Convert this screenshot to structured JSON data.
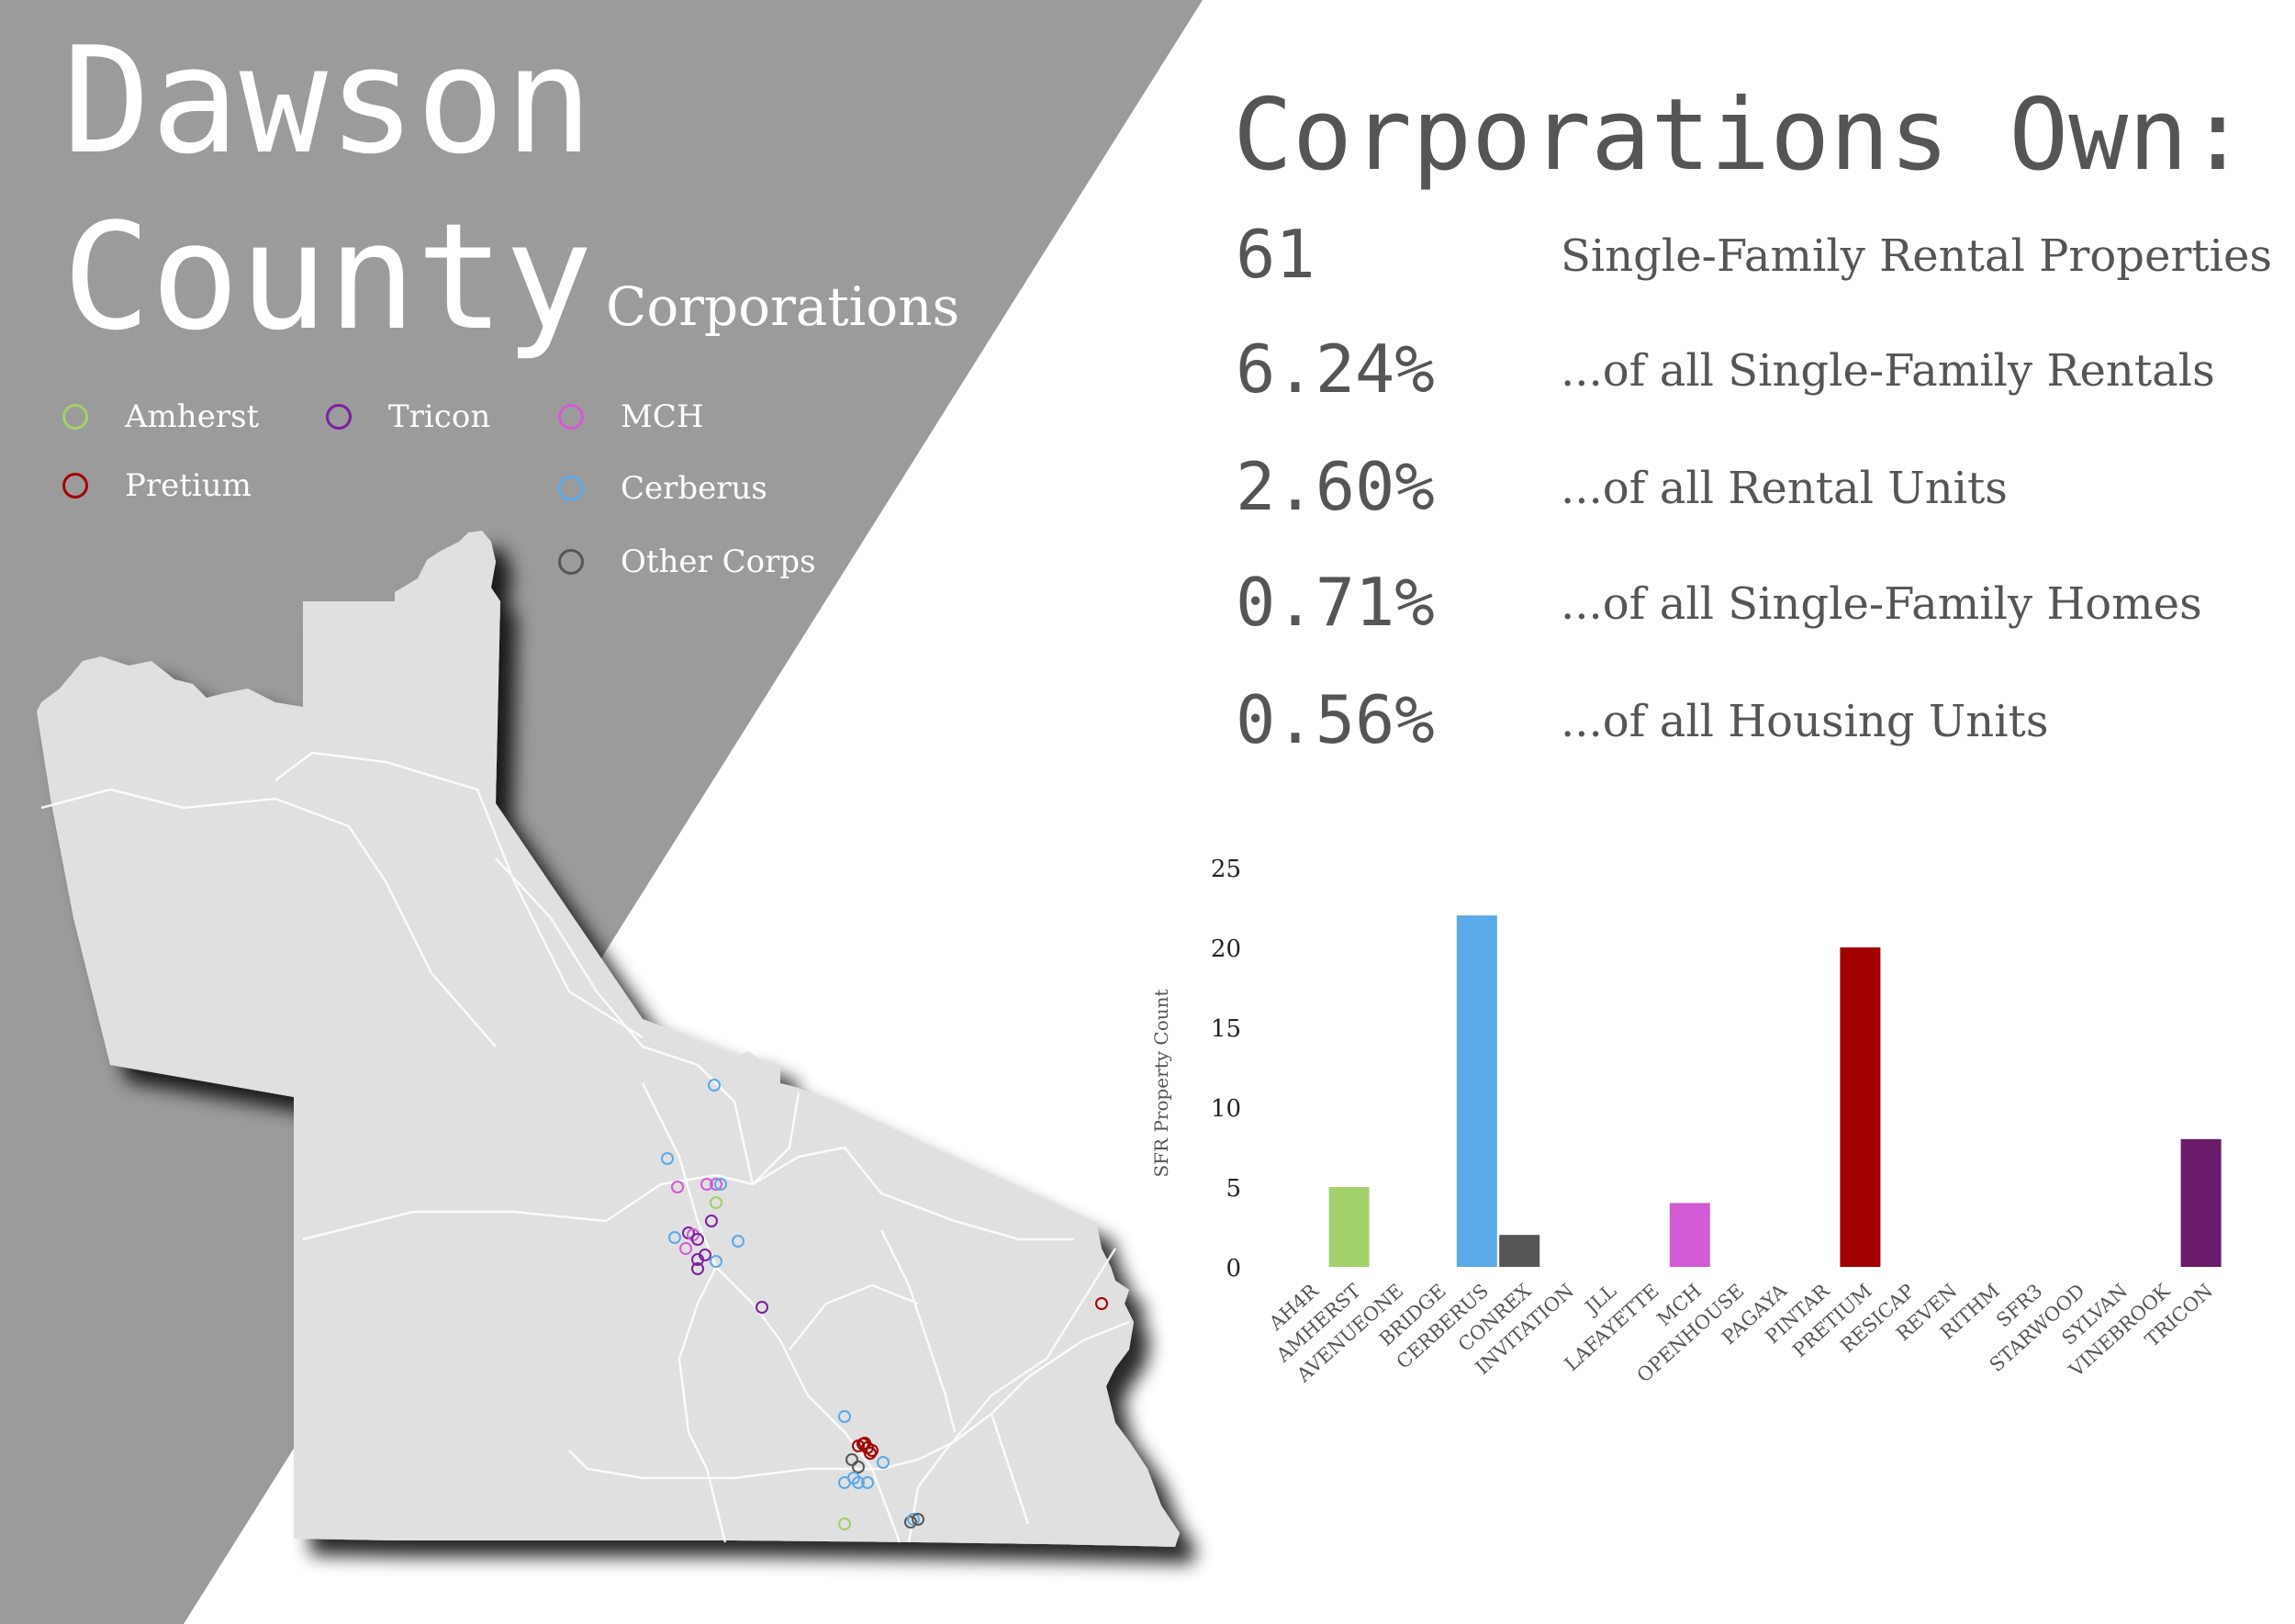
{
  "title": {
    "line1": "Dawson",
    "line2": "County",
    "subtitle": "Corporations"
  },
  "colors": {
    "wedge": "#9b9b9b",
    "map_fill": "#e0e0e0",
    "stat_text": "#555555"
  },
  "legend": [
    {
      "label": "Amherst",
      "color": "#a3d16b"
    },
    {
      "label": "Tricon",
      "color": "#7b1fa2"
    },
    {
      "label": "MCH",
      "color": "#d35bd3"
    },
    {
      "label": "Pretium",
      "color": "#a30000"
    },
    {
      "label": "Cerberus",
      "color": "#5aa9e8"
    },
    {
      "label": "Other Corps",
      "color": "#555555"
    }
  ],
  "stats": {
    "heading": "Corporations Own:",
    "rows": [
      {
        "value": "61",
        "label": "Single-Family Rental Properties"
      },
      {
        "value": "6.24%",
        "label": "...of all Single-Family Rentals"
      },
      {
        "value": "2.60%",
        "label": "...of all Rental Units"
      },
      {
        "value": "0.71%",
        "label": "...of all Single-Family Homes"
      },
      {
        "value": "0.56%",
        "label": "...of all Housing Units"
      }
    ]
  },
  "chart_data": {
    "type": "bar",
    "categories": [
      "AH4R",
      "AMHERST",
      "AVENUEONE",
      "BRIDGE",
      "CERBERUS",
      "CONREX",
      "INVITATION",
      "JLL",
      "LAFAYETTE",
      "MCH",
      "OPENHOUSE",
      "PAGAYA",
      "PINTAR",
      "PRETIUM",
      "RESICAP",
      "REVEN",
      "RITHM",
      "SFR3",
      "STARWOOD",
      "SYLVAN",
      "VINEBROOK",
      "TRICON"
    ],
    "values": [
      0,
      5,
      0,
      0,
      22,
      2,
      0,
      0,
      0,
      4,
      0,
      0,
      0,
      20,
      0,
      0,
      0,
      0,
      0,
      0,
      0,
      8
    ],
    "colors": [
      "#a3d16b",
      "#a3d16b",
      "#5aa9e8",
      "#5aa9e8",
      "#5aa9e8",
      "#555555",
      "#555555",
      "#555555",
      "#555555",
      "#d35bd3",
      "#555555",
      "#555555",
      "#555555",
      "#a30000",
      "#555555",
      "#555555",
      "#555555",
      "#555555",
      "#555555",
      "#555555",
      "#555555",
      "#6a1b6a"
    ],
    "ylabel": "SFR Property Count",
    "yticks": [
      0,
      5,
      10,
      15,
      20,
      25
    ],
    "ylim": [
      0,
      25
    ],
    "grid": false
  }
}
